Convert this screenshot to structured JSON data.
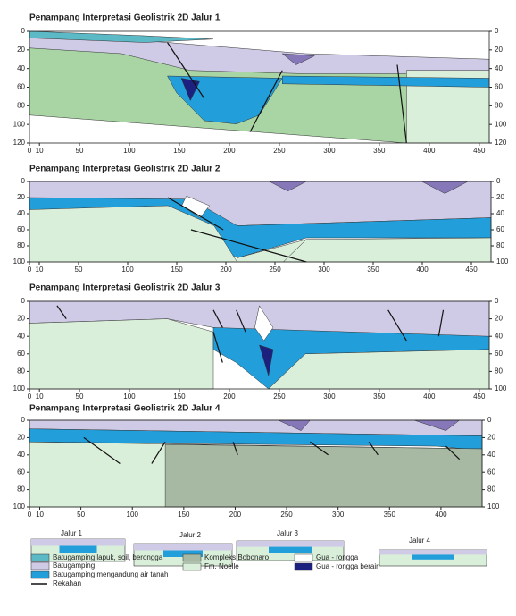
{
  "panels": [
    {
      "title": "Penampang Interpretasi Geolistrik 2D Jalur 1",
      "xlim": [
        0,
        460
      ],
      "xticks": [
        0,
        10,
        50,
        100,
        150,
        200,
        250,
        300,
        350,
        400,
        450
      ],
      "ylim": [
        0,
        120
      ],
      "yticks": [
        0,
        20,
        40,
        60,
        80,
        100,
        120
      ]
    },
    {
      "title": "Penampang Interpretasi Geolistrik 2D Jalur 2",
      "xlim": [
        0,
        470
      ],
      "xticks": [
        0,
        10,
        50,
        100,
        150,
        200,
        250,
        300,
        350,
        400,
        450
      ],
      "ylim": [
        0,
        100
      ],
      "yticks": [
        0,
        20,
        40,
        60,
        80,
        100
      ]
    },
    {
      "title": "Penampang Interpretasi Geolistrik 2D Jalur 3",
      "xlim": [
        0,
        460
      ],
      "xticks": [
        0,
        10,
        50,
        100,
        150,
        200,
        250,
        300,
        350,
        400,
        450
      ],
      "ylim": [
        0,
        100
      ],
      "yticks": [
        0,
        20,
        40,
        60,
        80,
        100
      ]
    },
    {
      "title": "Penampang Interpretasi Geolistrik 2D Jalur 4",
      "xlim": [
        0,
        440
      ],
      "xticks": [
        0,
        10,
        50,
        100,
        150,
        200,
        250,
        300,
        350,
        400
      ],
      "ylim": [
        0,
        100
      ],
      "yticks": [
        0,
        20,
        40,
        60,
        80,
        100
      ]
    }
  ],
  "overview": [
    "Jalur 1",
    "Jalur 2",
    "Jalur 3",
    "Jalur 4"
  ],
  "legend": [
    {
      "label": "Batugamping lapuk, soil, berongga",
      "color": "#5cb9c6"
    },
    {
      "label": "Batugamping",
      "color": "#cfcbe6"
    },
    {
      "label": "Batugamping mengandung air tanah",
      "color": "#229fdb"
    },
    {
      "label": "Rekahan",
      "color": "#111111"
    },
    {
      "label": "Kompleks Bobonaro",
      "color": "#a7b9a2"
    },
    {
      "label": "Fm. Noelle",
      "color": "#daefda"
    },
    {
      "label": "Gua - rongga",
      "color": "#ffffff"
    },
    {
      "label": "Gua - rongga berair",
      "color": "#1c2180"
    }
  ]
}
